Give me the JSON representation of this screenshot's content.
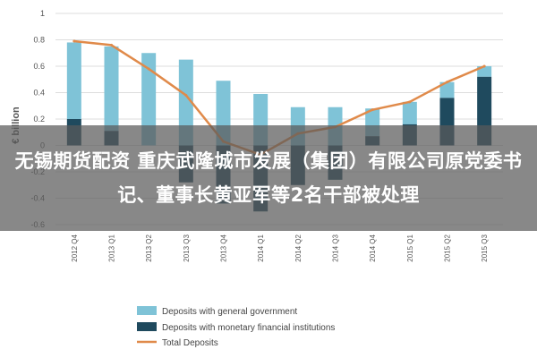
{
  "headline": "无锡期货配资 重庆武隆城市发展（集团）有限公司原党委书记、董事长黄亚军等2名干部被处理",
  "colors": {
    "general_government": "#7fc3d7",
    "monetary_financial": "#1f4a5e",
    "total": "#e08a4a",
    "band": "#5a5a5a"
  },
  "chart_data": {
    "type": "bar",
    "title": "",
    "xlabel": "",
    "ylabel": "€ billion",
    "ylim": [
      -0.6,
      1.0
    ],
    "yticks": [
      "1",
      "0.8",
      "0.6",
      "0.4",
      "0.2",
      "0",
      "-0.2",
      "-0.4",
      "-0.6"
    ],
    "ytick_values": [
      1.0,
      0.8,
      0.6,
      0.4,
      0.2,
      0.0,
      -0.2,
      -0.4,
      -0.6
    ],
    "categories": [
      "2012 Q4",
      "2013 Q1",
      "2013 Q2",
      "2013 Q3",
      "2013 Q4",
      "2014 Q1",
      "2014 Q2",
      "2014 Q3",
      "2014 Q4",
      "2015 Q1",
      "2015 Q2",
      "2015 Q3"
    ],
    "series": [
      {
        "name": "Deposits with general government",
        "kind": "bar",
        "values": [
          0.58,
          0.64,
          0.7,
          0.65,
          0.49,
          0.39,
          0.29,
          0.29,
          0.21,
          0.17,
          0.12,
          0.08
        ]
      },
      {
        "name": "Deposits with monetary financial institutions",
        "kind": "bar",
        "values": [
          0.2,
          0.11,
          0.0,
          -0.28,
          -0.44,
          -0.5,
          -0.3,
          -0.26,
          0.07,
          0.16,
          0.36,
          0.52
        ]
      },
      {
        "name": "Total Deposits",
        "kind": "line",
        "values": [
          0.79,
          0.76,
          0.58,
          0.38,
          0.03,
          -0.07,
          0.09,
          0.14,
          0.27,
          0.33,
          0.48,
          0.6
        ]
      }
    ],
    "grid": true,
    "legend_position": "bottom-left"
  }
}
